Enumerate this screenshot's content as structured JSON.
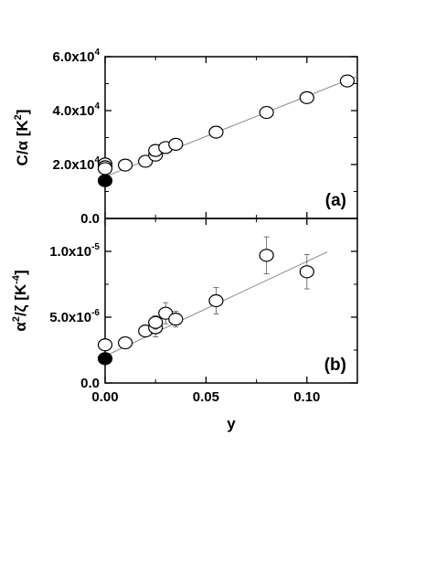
{
  "chart_data": [
    {
      "type": "scatter",
      "panel_label": "(a)",
      "ylabel": "C/α [K²]",
      "ylabel_parts": {
        "base": "C/α [K",
        "exp": "2",
        "close": "]"
      },
      "xlim": [
        0.0,
        0.125
      ],
      "ylim": [
        0,
        60000
      ],
      "yticks": [
        {
          "value": 0,
          "label": "0.0",
          "exp": ""
        },
        {
          "value": 20000,
          "label": "2.0x10",
          "exp": "4"
        },
        {
          "value": 40000,
          "label": "4.0x10",
          "exp": "4"
        },
        {
          "value": 60000,
          "label": "6.0x10",
          "exp": "4"
        }
      ],
      "series": [
        {
          "marker": "open-circle",
          "x": [
            0.0,
            0.0,
            0.0,
            0.01,
            0.02,
            0.025,
            0.025,
            0.03,
            0.035,
            0.055,
            0.08,
            0.1,
            0.12
          ],
          "y": [
            20200,
            19200,
            18500,
            19800,
            21200,
            23500,
            25200,
            26300,
            27500,
            32000,
            39300,
            44800,
            51000
          ]
        },
        {
          "marker": "filled-circle",
          "x": [
            0.0
          ],
          "y": [
            14000
          ]
        }
      ],
      "fit_line": {
        "x": [
          0.0,
          0.125
        ],
        "y": [
          15500,
          52800
        ]
      }
    },
    {
      "type": "scatter",
      "panel_label": "(b)",
      "ylabel": "α²/ζ [K⁻⁴]",
      "ylabel_parts": {
        "base": "α",
        "exp1": "2",
        "mid": "/ζ [K",
        "exp2": "-4",
        "close": "]"
      },
      "xlabel": "y",
      "xlim": [
        0.0,
        0.125
      ],
      "ylim": [
        0,
        1.25e-05
      ],
      "xticks": [
        {
          "value": 0.0,
          "label": "0.00"
        },
        {
          "value": 0.05,
          "label": "0.05"
        },
        {
          "value": 0.1,
          "label": "0.10"
        }
      ],
      "yticks": [
        {
          "value": 0,
          "label": "0.0",
          "exp": ""
        },
        {
          "value": 5e-06,
          "label": "5.0x10",
          "exp": "-6"
        },
        {
          "value": 1e-05,
          "label": "1.0x10",
          "exp": "-5"
        }
      ],
      "series": [
        {
          "marker": "open-circle",
          "x": [
            0.0,
            0.01,
            0.02,
            0.025,
            0.025,
            0.03,
            0.035,
            0.055,
            0.08,
            0.1
          ],
          "y": [
            2.9e-06,
            3.05e-06,
            3.95e-06,
            4.2e-06,
            4.6e-06,
            5.3e-06,
            4.85e-06,
            6.25e-06,
            9.7e-06,
            8.45e-06
          ],
          "error": [
            0,
            0,
            3e-07,
            7e-07,
            5e-07,
            8e-07,
            6e-07,
            1e-06,
            1.4e-06,
            1.3e-06
          ]
        },
        {
          "marker": "filled-circle",
          "x": [
            0.0
          ],
          "y": [
            1.85e-06
          ],
          "error": [
            0
          ]
        }
      ],
      "fit_line": {
        "x": [
          0.0,
          0.11
        ],
        "y": [
          2.05e-06,
          9.95e-06
        ]
      }
    }
  ]
}
